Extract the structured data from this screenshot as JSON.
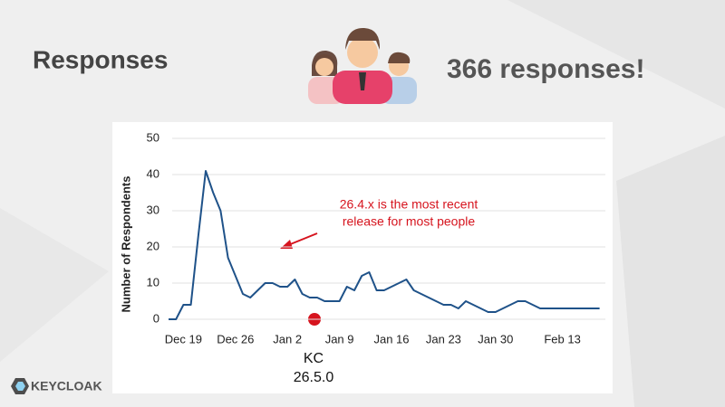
{
  "slide": {
    "title": "Responses",
    "headline": "366 responses!",
    "logo": "KEYCLOAK"
  },
  "chart_data": {
    "type": "line",
    "ylabel": "Number of Respondents",
    "categories": [
      null,
      null,
      "Dec 19",
      null,
      null,
      null,
      null,
      null,
      null,
      "Dec 26",
      null,
      null,
      null,
      null,
      null,
      null,
      "Jan 2",
      null,
      null,
      null,
      null,
      null,
      null,
      "Jan 9",
      null,
      null,
      null,
      null,
      null,
      null,
      "Jan 16",
      null,
      null,
      null,
      null,
      null,
      null,
      "Jan 23",
      null,
      null,
      null,
      null,
      null,
      null,
      "Jan 30",
      null,
      null,
      null,
      null,
      null,
      null,
      null,
      null,
      "Feb 13",
      null,
      null,
      null,
      null,
      null
    ],
    "values": [
      0,
      0,
      4,
      4,
      23,
      41,
      35,
      30,
      17,
      12,
      7,
      6,
      8,
      10,
      10,
      9,
      9,
      11,
      7,
      6,
      6,
      5,
      5,
      5,
      9,
      8,
      12,
      13,
      8,
      8,
      9,
      10,
      11,
      8,
      7,
      6,
      5,
      4,
      4,
      3,
      5,
      4,
      3,
      2,
      2,
      3,
      4,
      5,
      5,
      4,
      3,
      3,
      3,
      3,
      3,
      3,
      3,
      3,
      3
    ],
    "color": "#1f5289",
    "ylim": [
      0,
      50
    ],
    "yticks": [
      0,
      10,
      20,
      30,
      40,
      50
    ],
    "grid": true,
    "callout": [
      "26.4.x is the most recent",
      "release for most people"
    ],
    "release_label": [
      "KC",
      "26.5.0"
    ]
  }
}
